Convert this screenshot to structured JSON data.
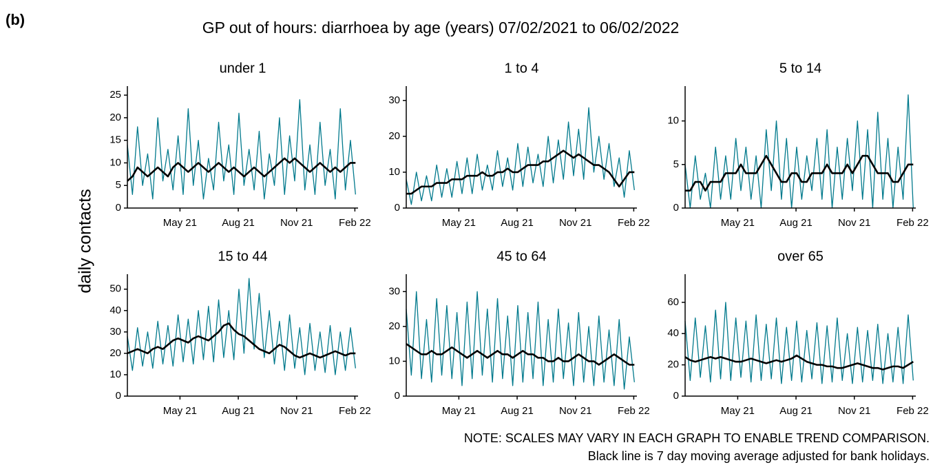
{
  "label": "(b)",
  "title": "GP out of hours: diarrhoea by age (years) 07/02/2021 to 06/02/2022",
  "y_label": "daily contacts",
  "notes": [
    "NOTE: SCALES MAY VARY IN EACH GRAPH TO ENABLE TREND COMPARISON.",
    "Black line is 7 day moving average adjusted for bank holidays."
  ],
  "chart_data": [
    {
      "type": "line",
      "title": "under 1",
      "x": [
        0,
        8,
        16,
        24,
        32,
        40,
        48,
        56,
        64,
        72,
        80,
        88,
        96,
        104,
        112,
        120,
        128,
        136,
        144,
        152,
        160,
        168,
        176,
        184,
        192,
        200,
        208,
        216,
        224,
        232,
        240,
        248,
        256,
        264,
        272,
        280,
        288,
        296,
        304,
        312,
        320,
        328,
        336,
        344,
        352,
        360
      ],
      "xlim": [
        0,
        364
      ],
      "xticks": [
        {
          "value": 83,
          "label": "May 21"
        },
        {
          "value": 175,
          "label": "Aug 21"
        },
        {
          "value": 267,
          "label": "Nov 21"
        },
        {
          "value": 359,
          "label": "Feb 22"
        }
      ],
      "ylim": [
        0,
        27
      ],
      "yticks": [
        0,
        5,
        10,
        15,
        20,
        25
      ],
      "series": [
        {
          "color": "#00798c",
          "values": [
            14,
            3,
            18,
            5,
            12,
            2,
            20,
            6,
            13,
            4,
            16,
            3,
            22,
            5,
            15,
            2,
            11,
            4,
            19,
            6,
            14,
            3,
            21,
            5,
            13,
            4,
            17,
            2,
            12,
            5,
            20,
            3,
            16,
            6,
            24,
            4,
            14,
            3,
            19,
            5,
            13,
            2,
            22,
            4,
            15,
            3
          ]
        },
        {
          "color": "#000000",
          "values": [
            6,
            7,
            9,
            8,
            7,
            8,
            9,
            8,
            7,
            9,
            10,
            9,
            8,
            9,
            10,
            9,
            8,
            9,
            10,
            9,
            8,
            9,
            8,
            7,
            8,
            9,
            8,
            7,
            8,
            9,
            10,
            11,
            10,
            11,
            10,
            9,
            8,
            9,
            10,
            9,
            8,
            9,
            8,
            9,
            10,
            10
          ]
        }
      ]
    },
    {
      "type": "line",
      "title": "1 to 4",
      "x": [
        0,
        8,
        16,
        24,
        32,
        40,
        48,
        56,
        64,
        72,
        80,
        88,
        96,
        104,
        112,
        120,
        128,
        136,
        144,
        152,
        160,
        168,
        176,
        184,
        192,
        200,
        208,
        216,
        224,
        232,
        240,
        248,
        256,
        264,
        272,
        280,
        288,
        296,
        304,
        312,
        320,
        328,
        336,
        344,
        352,
        360
      ],
      "xlim": [
        0,
        364
      ],
      "xticks": [
        {
          "value": 83,
          "label": "May 21"
        },
        {
          "value": 175,
          "label": "Aug 21"
        },
        {
          "value": 267,
          "label": "Nov 21"
        },
        {
          "value": 359,
          "label": "Feb 22"
        }
      ],
      "ylim": [
        0,
        34
      ],
      "yticks": [
        0,
        10,
        20,
        30
      ],
      "series": [
        {
          "color": "#00798c",
          "values": [
            8,
            1,
            10,
            2,
            9,
            2,
            12,
            3,
            11,
            3,
            13,
            4,
            14,
            4,
            15,
            5,
            12,
            5,
            16,
            6,
            14,
            5,
            18,
            6,
            17,
            7,
            15,
            6,
            20,
            7,
            19,
            8,
            24,
            9,
            22,
            8,
            28,
            10,
            20,
            8,
            18,
            6,
            14,
            3,
            16,
            5
          ]
        },
        {
          "color": "#000000",
          "values": [
            4,
            4,
            5,
            6,
            6,
            6,
            7,
            7,
            7,
            8,
            8,
            8,
            9,
            9,
            9,
            10,
            9,
            9,
            10,
            10,
            11,
            10,
            10,
            11,
            12,
            12,
            12,
            13,
            13,
            14,
            15,
            16,
            15,
            14,
            15,
            14,
            13,
            12,
            12,
            11,
            10,
            8,
            6,
            8,
            10,
            10
          ]
        }
      ]
    },
    {
      "type": "line",
      "title": "5 to 14",
      "x": [
        0,
        8,
        16,
        24,
        32,
        40,
        48,
        56,
        64,
        72,
        80,
        88,
        96,
        104,
        112,
        120,
        128,
        136,
        144,
        152,
        160,
        168,
        176,
        184,
        192,
        200,
        208,
        216,
        224,
        232,
        240,
        248,
        256,
        264,
        272,
        280,
        288,
        296,
        304,
        312,
        320,
        328,
        336,
        344,
        352,
        360
      ],
      "xlim": [
        0,
        364
      ],
      "xticks": [
        {
          "value": 83,
          "label": "May 21"
        },
        {
          "value": 175,
          "label": "Aug 21"
        },
        {
          "value": 267,
          "label": "Nov 21"
        },
        {
          "value": 359,
          "label": "Feb 22"
        }
      ],
      "ylim": [
        0,
        14
      ],
      "yticks": [
        0,
        5,
        10
      ],
      "series": [
        {
          "color": "#00798c",
          "values": [
            5,
            0,
            6,
            1,
            4,
            0,
            7,
            1,
            6,
            1,
            8,
            2,
            7,
            1,
            6,
            0,
            9,
            2,
            10,
            1,
            8,
            0,
            7,
            1,
            6,
            2,
            8,
            1,
            9,
            0,
            7,
            1,
            8,
            2,
            10,
            1,
            9,
            0,
            11,
            1,
            8,
            0,
            7,
            1,
            13,
            0
          ]
        },
        {
          "color": "#000000",
          "values": [
            2,
            2,
            3,
            3,
            2,
            3,
            3,
            3,
            4,
            4,
            4,
            5,
            4,
            4,
            4,
            5,
            6,
            5,
            4,
            3,
            3,
            4,
            4,
            3,
            3,
            4,
            4,
            4,
            5,
            4,
            4,
            4,
            5,
            4,
            5,
            6,
            6,
            5,
            4,
            4,
            4,
            3,
            3,
            4,
            5,
            5
          ]
        }
      ]
    },
    {
      "type": "line",
      "title": "15 to 44",
      "x": [
        0,
        8,
        16,
        24,
        32,
        40,
        48,
        56,
        64,
        72,
        80,
        88,
        96,
        104,
        112,
        120,
        128,
        136,
        144,
        152,
        160,
        168,
        176,
        184,
        192,
        200,
        208,
        216,
        224,
        232,
        240,
        248,
        256,
        264,
        272,
        280,
        288,
        296,
        304,
        312,
        320,
        328,
        336,
        344,
        352,
        360
      ],
      "xlim": [
        0,
        364
      ],
      "xticks": [
        {
          "value": 83,
          "label": "May 21"
        },
        {
          "value": 175,
          "label": "Aug 21"
        },
        {
          "value": 267,
          "label": "Nov 21"
        },
        {
          "value": 359,
          "label": "Feb 22"
        }
      ],
      "ylim": [
        0,
        57
      ],
      "yticks": [
        0,
        10,
        20,
        30,
        40,
        50
      ],
      "series": [
        {
          "color": "#00798c",
          "values": [
            28,
            12,
            32,
            14,
            30,
            13,
            35,
            15,
            33,
            14,
            38,
            16,
            36,
            15,
            40,
            17,
            42,
            16,
            45,
            18,
            40,
            17,
            50,
            20,
            55,
            22,
            48,
            18,
            40,
            15,
            35,
            12,
            38,
            13,
            32,
            10,
            34,
            12,
            30,
            11,
            33,
            10,
            30,
            12,
            32,
            13
          ]
        },
        {
          "color": "#000000",
          "values": [
            20,
            21,
            22,
            21,
            20,
            22,
            23,
            22,
            24,
            26,
            27,
            26,
            25,
            27,
            28,
            27,
            26,
            28,
            30,
            33,
            34,
            31,
            29,
            28,
            26,
            24,
            22,
            21,
            20,
            22,
            24,
            23,
            21,
            19,
            18,
            19,
            20,
            19,
            18,
            19,
            20,
            21,
            20,
            19,
            20,
            20
          ]
        }
      ]
    },
    {
      "type": "line",
      "title": "45 to 64",
      "x": [
        0,
        8,
        16,
        24,
        32,
        40,
        48,
        56,
        64,
        72,
        80,
        88,
        96,
        104,
        112,
        120,
        128,
        136,
        144,
        152,
        160,
        168,
        176,
        184,
        192,
        200,
        208,
        216,
        224,
        232,
        240,
        248,
        256,
        264,
        272,
        280,
        288,
        296,
        304,
        312,
        320,
        328,
        336,
        344,
        352,
        360
      ],
      "xlim": [
        0,
        364
      ],
      "xticks": [
        {
          "value": 83,
          "label": "May 21"
        },
        {
          "value": 175,
          "label": "Aug 21"
        },
        {
          "value": 267,
          "label": "Nov 21"
        },
        {
          "value": 359,
          "label": "Feb 22"
        }
      ],
      "ylim": [
        0,
        35
      ],
      "yticks": [
        0,
        10,
        20,
        30
      ],
      "series": [
        {
          "color": "#00798c",
          "values": [
            25,
            6,
            30,
            5,
            22,
            4,
            28,
            6,
            26,
            5,
            24,
            3,
            27,
            5,
            30,
            6,
            25,
            4,
            28,
            5,
            23,
            3,
            26,
            4,
            24,
            5,
            27,
            3,
            22,
            4,
            25,
            5,
            21,
            3,
            24,
            4,
            20,
            3,
            23,
            4,
            19,
            3,
            22,
            2,
            17,
            4
          ]
        },
        {
          "color": "#000000",
          "values": [
            15,
            14,
            13,
            12,
            12,
            13,
            12,
            12,
            13,
            14,
            13,
            12,
            11,
            12,
            13,
            12,
            11,
            12,
            13,
            12,
            12,
            11,
            12,
            13,
            12,
            12,
            11,
            11,
            10,
            10,
            11,
            10,
            10,
            11,
            12,
            11,
            10,
            10,
            9,
            10,
            11,
            12,
            11,
            10,
            9,
            9
          ]
        }
      ]
    },
    {
      "type": "line",
      "title": "over 65",
      "x": [
        0,
        8,
        16,
        24,
        32,
        40,
        48,
        56,
        64,
        72,
        80,
        88,
        96,
        104,
        112,
        120,
        128,
        136,
        144,
        152,
        160,
        168,
        176,
        184,
        192,
        200,
        208,
        216,
        224,
        232,
        240,
        248,
        256,
        264,
        272,
        280,
        288,
        296,
        304,
        312,
        320,
        328,
        336,
        344,
        352,
        360
      ],
      "xlim": [
        0,
        364
      ],
      "xticks": [
        {
          "value": 83,
          "label": "May 21"
        },
        {
          "value": 175,
          "label": "Aug 21"
        },
        {
          "value": 267,
          "label": "Nov 21"
        },
        {
          "value": 359,
          "label": "Feb 22"
        }
      ],
      "ylim": [
        0,
        78
      ],
      "yticks": [
        0,
        20,
        40,
        60
      ],
      "series": [
        {
          "color": "#00798c",
          "values": [
            48,
            10,
            50,
            12,
            45,
            9,
            55,
            11,
            60,
            10,
            50,
            12,
            48,
            9,
            52,
            10,
            46,
            11,
            50,
            8,
            44,
            10,
            48,
            9,
            42,
            11,
            47,
            8,
            45,
            9,
            50,
            10,
            40,
            8,
            44,
            9,
            42,
            10,
            46,
            8,
            40,
            9,
            44,
            8,
            52,
            10
          ]
        },
        {
          "color": "#000000",
          "values": [
            25,
            23,
            22,
            23,
            24,
            25,
            24,
            25,
            24,
            23,
            22,
            22,
            23,
            24,
            23,
            22,
            21,
            22,
            23,
            22,
            23,
            24,
            26,
            24,
            22,
            21,
            20,
            20,
            19,
            19,
            18,
            18,
            19,
            20,
            21,
            20,
            19,
            18,
            18,
            17,
            18,
            19,
            19,
            18,
            20,
            22
          ]
        }
      ]
    }
  ]
}
